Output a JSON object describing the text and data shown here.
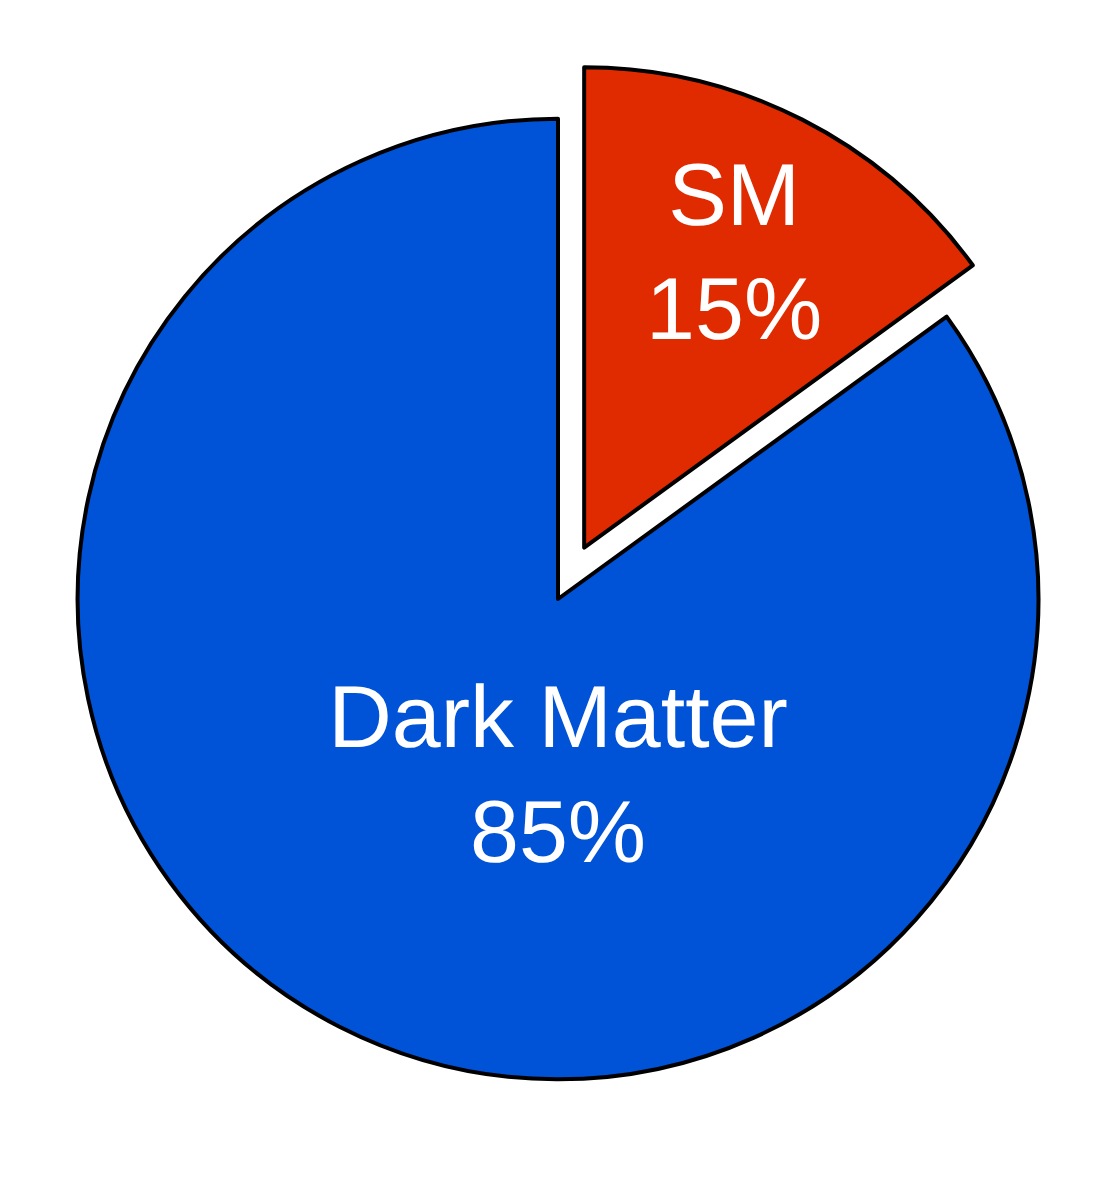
{
  "chart_data": {
    "type": "pie",
    "categories": [
      "SM",
      "Dark Matter"
    ],
    "values": [
      15,
      85
    ],
    "colors": [
      "#e02a00",
      "#0052d6"
    ],
    "value_labels": [
      "15%",
      "85%"
    ],
    "legend": false
  }
}
